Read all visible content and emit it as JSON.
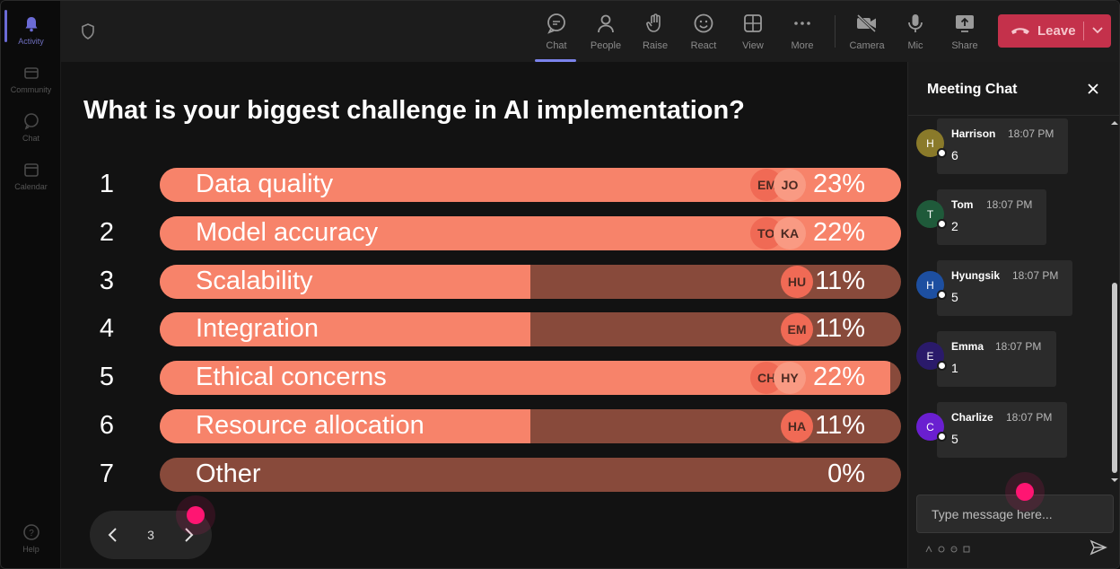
{
  "rail": {
    "items": [
      {
        "label": "Activity"
      },
      {
        "label": "Community"
      },
      {
        "label": "Chat"
      },
      {
        "label": "Calendar"
      },
      {
        "label": "Help"
      }
    ]
  },
  "toolbar": {
    "buttons": [
      {
        "label": "Chat",
        "icon": "chat-icon"
      },
      {
        "label": "People",
        "icon": "people-icon"
      },
      {
        "label": "Raise",
        "icon": "raise-hand-icon"
      },
      {
        "label": "React",
        "icon": "react-icon"
      },
      {
        "label": "View",
        "icon": "view-icon"
      },
      {
        "label": "More",
        "icon": "more-icon"
      },
      {
        "label": "Camera",
        "icon": "camera-off-icon"
      },
      {
        "label": "Mic",
        "icon": "mic-icon"
      },
      {
        "label": "Share",
        "icon": "share-icon"
      }
    ],
    "leave_label": "Leave",
    "leave_color": "#c4314b"
  },
  "poll": {
    "question": "What is your biggest challenge in AI implementation?",
    "options": [
      {
        "num": "1",
        "label": "Data quality",
        "pct": "23%",
        "fill_fraction": 1.0,
        "chips": [
          "EM",
          "JO"
        ]
      },
      {
        "num": "2",
        "label": "Model accuracy",
        "pct": "22%",
        "fill_fraction": 1.0,
        "chips": [
          "TO",
          "KA"
        ]
      },
      {
        "num": "3",
        "label": "Scalability",
        "pct": "11%",
        "fill_fraction": 0.5,
        "chips": [
          "HU"
        ]
      },
      {
        "num": "4",
        "label": "Integration",
        "pct": "11%",
        "fill_fraction": 0.5,
        "chips": [
          "EM"
        ]
      },
      {
        "num": "5",
        "label": "Ethical concerns",
        "pct": "22%",
        "fill_fraction": 0.985,
        "chips": [
          "CH",
          "HY"
        ]
      },
      {
        "num": "6",
        "label": "Resource allocation",
        "pct": "11%",
        "fill_fraction": 0.5,
        "chips": [
          "HA"
        ]
      },
      {
        "num": "7",
        "label": "Other",
        "pct": "0%",
        "fill_fraction": 0.0,
        "chips": []
      }
    ],
    "colors": {
      "fill": "#f7836a",
      "track": "#884a3b"
    }
  },
  "pager": {
    "page": "3"
  },
  "chat": {
    "title": "Meeting Chat",
    "messages": [
      {
        "initial": "H",
        "name": "Harrison",
        "time": "18:07 PM",
        "text": "6",
        "color": "#8a7a2a"
      },
      {
        "initial": "T",
        "name": "Tom",
        "time": "18:07 PM",
        "text": "2",
        "color": "#1f5a3a"
      },
      {
        "initial": "H",
        "name": "Hyungsik",
        "time": "18:07 PM",
        "text": "5",
        "color": "#1d4fa0"
      },
      {
        "initial": "E",
        "name": "Emma",
        "time": "18:07 PM",
        "text": "1",
        "color": "#2a1a6a"
      },
      {
        "initial": "C",
        "name": "Charlize",
        "time": "18:07 PM",
        "text": "5",
        "color": "#6a1fd0"
      }
    ],
    "input_placeholder": "Type message here..."
  }
}
